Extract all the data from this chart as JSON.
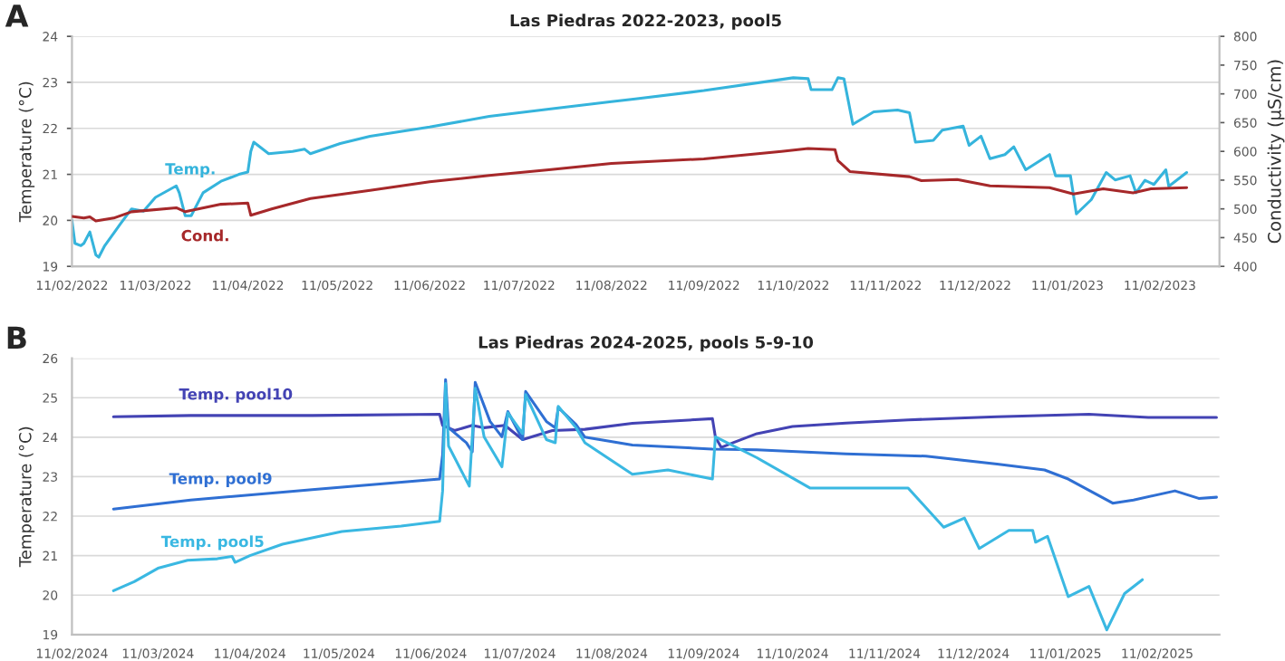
{
  "chart_data": [
    {
      "type": "line",
      "title": "Las Piedras 2022-2023, pool5",
      "ylabel": "Temperature (°C)",
      "y2label": "Conductivity (µS/cm)",
      "annotations": [
        "A"
      ],
      "grid": "y",
      "xlim": [
        "2022-02-11",
        "2023-03-03"
      ],
      "xticks": [
        {
          "value": "2022-02-11",
          "label": "11/02/2022"
        },
        {
          "value": "2022-03-11",
          "label": "11/03/2022"
        },
        {
          "value": "2022-04-11",
          "label": "11/04/2022"
        },
        {
          "value": "2022-05-11",
          "label": "11/05/2022"
        },
        {
          "value": "2022-06-11",
          "label": "11/06/2022"
        },
        {
          "value": "2022-07-11",
          "label": "11/07/2022"
        },
        {
          "value": "2022-08-11",
          "label": "11/08/2022"
        },
        {
          "value": "2022-09-11",
          "label": "11/09/2022"
        },
        {
          "value": "2022-10-11",
          "label": "11/10/2022"
        },
        {
          "value": "2022-11-11",
          "label": "11/11/2022"
        },
        {
          "value": "2022-12-11",
          "label": "11/12/2022"
        },
        {
          "value": "2023-01-11",
          "label": "11/01/2023"
        },
        {
          "value": "2023-02-11",
          "label": "11/02/2023"
        }
      ],
      "ylim": [
        19,
        24
      ],
      "yticks": [
        19,
        20,
        21,
        22,
        23,
        24
      ],
      "y2lim": [
        400,
        800
      ],
      "y2ticks": [
        400,
        450,
        500,
        550,
        600,
        650,
        700,
        750,
        800
      ],
      "series": [
        {
          "name": "Temp.",
          "color": "#35b4dc",
          "x": [
            "2022-02-11",
            "2022-02-12",
            "2022-02-14",
            "2022-02-15",
            "2022-02-17",
            "2022-02-19",
            "2022-02-20",
            "2022-02-22",
            "2022-02-27",
            "2022-03-03",
            "2022-03-07",
            "2022-03-11",
            "2022-03-18",
            "2022-03-19",
            "2022-03-21",
            "2022-03-23",
            "2022-03-27",
            "2022-04-02",
            "2022-04-08",
            "2022-04-11",
            "2022-04-12",
            "2022-04-13",
            "2022-04-18",
            "2022-04-26",
            "2022-04-30",
            "2022-05-02",
            "2022-05-12",
            "2022-05-22",
            "2022-06-11",
            "2022-07-01",
            "2022-07-21",
            "2022-08-11",
            "2022-08-19",
            "2022-09-11",
            "2022-10-11",
            "2022-10-16",
            "2022-10-17",
            "2022-10-24",
            "2022-10-26",
            "2022-10-28",
            "2022-10-31",
            "2022-11-07",
            "2022-11-15",
            "2022-11-19",
            "2022-11-21",
            "2022-11-27",
            "2022-11-30",
            "2022-12-07",
            "2022-12-09",
            "2022-12-13",
            "2022-12-16",
            "2022-12-21",
            "2022-12-24",
            "2022-12-28",
            "2023-01-05",
            "2023-01-07",
            "2023-01-12",
            "2023-01-14",
            "2023-01-19",
            "2023-01-24",
            "2023-01-27",
            "2023-02-01",
            "2023-02-03",
            "2023-02-06",
            "2023-02-09",
            "2023-02-13",
            "2023-02-14",
            "2023-02-20"
          ],
          "values": [
            20.0,
            19.5,
            19.45,
            19.5,
            19.75,
            19.25,
            19.2,
            19.45,
            19.9,
            20.25,
            20.2,
            20.5,
            20.75,
            20.6,
            20.1,
            20.1,
            20.6,
            20.85,
            21.0,
            21.05,
            21.5,
            21.7,
            21.45,
            21.5,
            21.55,
            21.45,
            21.67,
            21.83,
            22.03,
            22.26,
            22.42,
            22.58,
            22.64,
            22.82,
            23.1,
            23.08,
            22.84,
            22.84,
            23.1,
            23.08,
            22.09,
            22.36,
            22.4,
            22.34,
            21.7,
            21.74,
            21.96,
            22.05,
            21.63,
            21.83,
            21.34,
            21.43,
            21.6,
            21.1,
            21.43,
            20.97,
            20.97,
            20.14,
            20.45,
            21.04,
            20.88,
            20.97,
            20.6,
            20.87,
            20.78,
            21.1,
            20.74,
            21.04
          ]
        },
        {
          "name": "Cond.",
          "color": "#a6282a",
          "axis": "y2",
          "x": [
            "2022-02-11",
            "2022-02-15",
            "2022-02-17",
            "2022-02-19",
            "2022-02-25",
            "2022-03-03",
            "2022-03-18",
            "2022-03-21",
            "2022-04-02",
            "2022-04-11",
            "2022-04-12",
            "2022-04-19",
            "2022-05-02",
            "2022-05-22",
            "2022-06-11",
            "2022-07-01",
            "2022-07-21",
            "2022-08-11",
            "2022-09-11",
            "2022-10-07",
            "2022-10-16",
            "2022-10-25",
            "2022-10-26",
            "2022-10-30",
            "2022-11-19",
            "2022-11-23",
            "2022-12-05",
            "2022-12-16",
            "2023-01-05",
            "2023-01-13",
            "2023-01-23",
            "2023-02-02",
            "2023-02-08",
            "2023-02-20"
          ],
          "values": [
            487,
            484,
            486,
            479,
            484,
            495,
            502,
            495,
            508,
            510,
            489,
            500,
            518,
            532,
            547,
            558,
            568,
            579,
            587,
            600,
            605,
            603,
            584,
            565,
            556,
            549,
            551,
            540,
            537,
            526,
            535,
            528,
            535,
            537
          ]
        }
      ]
    },
    {
      "type": "line",
      "title": "Las Piedras 2024-2025, pools 5-9-10",
      "ylabel": "Temperature (°C)",
      "annotations": [
        "B"
      ],
      "grid": "y",
      "xlim": [
        "2024-02-11",
        "2025-03-04"
      ],
      "xticks": [
        {
          "value": "2024-02-11",
          "label": "11/02/2024"
        },
        {
          "value": "2024-03-11",
          "label": "11/03/2024"
        },
        {
          "value": "2024-04-11",
          "label": "11/04/2024"
        },
        {
          "value": "2024-05-11",
          "label": "11/05/2024"
        },
        {
          "value": "2024-06-11",
          "label": "11/06/2024"
        },
        {
          "value": "2024-07-11",
          "label": "11/07/2024"
        },
        {
          "value": "2024-08-11",
          "label": "11/08/2024"
        },
        {
          "value": "2024-09-11",
          "label": "11/09/2024"
        },
        {
          "value": "2024-10-11",
          "label": "11/10/2024"
        },
        {
          "value": "2024-11-11",
          "label": "11/11/2024"
        },
        {
          "value": "2024-12-11",
          "label": "11/12/2024"
        },
        {
          "value": "2025-01-11",
          "label": "11/01/2025"
        },
        {
          "value": "2025-02-11",
          "label": "11/02/2025"
        }
      ],
      "ylim": [
        19,
        26
      ],
      "yticks": [
        19,
        20,
        21,
        22,
        23,
        24,
        25,
        26
      ],
      "series": [
        {
          "name": "Temp. pool10",
          "color": "#4343b4",
          "x": [
            "2024-02-25",
            "2024-03-22",
            "2024-05-02",
            "2024-06-14",
            "2024-06-15",
            "2024-06-19",
            "2024-06-25",
            "2024-06-29",
            "2024-07-06",
            "2024-07-12",
            "2024-07-22",
            "2024-08-02",
            "2024-08-18",
            "2024-09-14",
            "2024-09-15",
            "2024-09-17",
            "2024-09-21",
            "2024-09-29",
            "2024-10-11",
            "2024-10-29",
            "2024-11-19",
            "2024-12-19",
            "2025-01-19",
            "2025-02-08",
            "2025-03-03"
          ],
          "values": [
            24.52,
            24.55,
            24.55,
            24.58,
            24.3,
            24.17,
            24.3,
            24.24,
            24.3,
            23.94,
            24.17,
            24.2,
            24.35,
            24.47,
            24.0,
            23.74,
            23.86,
            24.09,
            24.27,
            24.36,
            24.44,
            24.52,
            24.58,
            24.5,
            24.5
          ]
        },
        {
          "name": "Temp. pool9",
          "color": "#2f6fd3",
          "x": [
            "2024-02-25",
            "2024-03-22",
            "2024-05-02",
            "2024-06-14",
            "2024-06-15",
            "2024-06-16",
            "2024-06-17",
            "2024-06-23",
            "2024-06-25",
            "2024-06-26",
            "2024-07-01",
            "2024-07-05",
            "2024-07-07",
            "2024-07-12",
            "2024-07-13",
            "2024-07-20",
            "2024-07-23",
            "2024-07-24",
            "2024-07-30",
            "2024-08-02",
            "2024-08-18",
            "2024-09-14",
            "2024-09-29",
            "2024-10-29",
            "2024-11-25",
            "2024-12-19",
            "2025-01-04",
            "2025-01-12",
            "2025-01-27",
            "2025-02-03",
            "2025-02-17",
            "2025-02-25",
            "2025-03-03"
          ],
          "values": [
            22.18,
            22.41,
            22.67,
            22.94,
            23.55,
            25.46,
            24.24,
            23.86,
            23.63,
            25.39,
            24.4,
            24.01,
            24.65,
            23.94,
            25.16,
            24.4,
            24.24,
            24.75,
            24.32,
            24.0,
            23.8,
            23.7,
            23.68,
            23.58,
            23.52,
            23.32,
            23.17,
            22.94,
            22.33,
            22.41,
            22.64,
            22.45,
            22.48
          ]
        },
        {
          "name": "Temp. pool5",
          "color": "#3ab8e2",
          "x": [
            "2024-02-25",
            "2024-03-03",
            "2024-03-11",
            "2024-03-21",
            "2024-03-31",
            "2024-04-05",
            "2024-04-06",
            "2024-04-11",
            "2024-04-22",
            "2024-05-12",
            "2024-06-01",
            "2024-06-14",
            "2024-06-15",
            "2024-06-16",
            "2024-06-17",
            "2024-06-24",
            "2024-06-26",
            "2024-06-29",
            "2024-07-05",
            "2024-07-07",
            "2024-07-12",
            "2024-07-13",
            "2024-07-20",
            "2024-07-23",
            "2024-07-24",
            "2024-07-30",
            "2024-08-02",
            "2024-08-18",
            "2024-08-30",
            "2024-09-14",
            "2024-09-15",
            "2024-09-29",
            "2024-10-17",
            "2024-10-28",
            "2024-11-19",
            "2024-12-01",
            "2024-12-08",
            "2024-12-13",
            "2024-12-23",
            "2024-12-31",
            "2025-01-01",
            "2025-01-05",
            "2025-01-12",
            "2025-01-19",
            "2025-01-25",
            "2025-01-31",
            "2025-02-06"
          ],
          "values": [
            20.11,
            20.34,
            20.68,
            20.88,
            20.92,
            20.98,
            20.83,
            21.0,
            21.29,
            21.61,
            21.75,
            21.87,
            22.64,
            25.36,
            23.78,
            22.76,
            25.24,
            24.01,
            23.25,
            24.62,
            24.09,
            25.08,
            23.94,
            23.86,
            24.78,
            24.24,
            23.86,
            23.06,
            23.17,
            22.94,
            24.01,
            23.48,
            22.71,
            22.71,
            22.71,
            21.72,
            21.95,
            21.18,
            21.64,
            21.64,
            21.34,
            21.49,
            19.96,
            20.22,
            19.12,
            20.04,
            20.39
          ]
        }
      ]
    }
  ]
}
